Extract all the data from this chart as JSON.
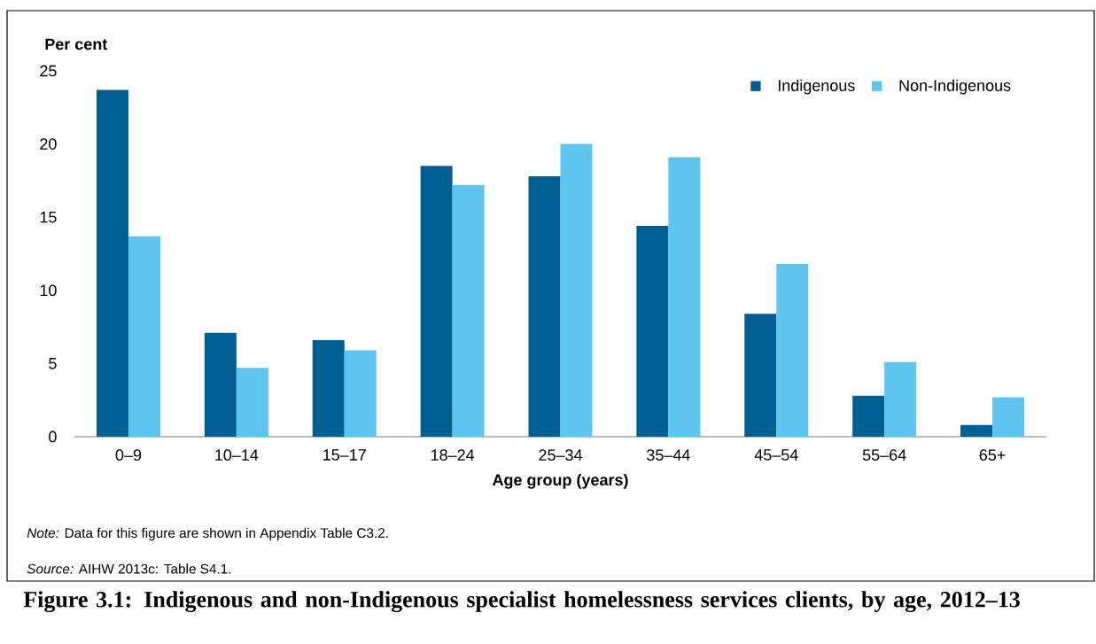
{
  "chart_data": {
    "type": "bar",
    "title": "Figure 3.1: Indigenous and non-Indigenous specialist homelessness services clients, by age, 2012–13",
    "xlabel": "Age group (years)",
    "ylabel": "Per cent",
    "categories": [
      "0–9",
      "10–14",
      "15–17",
      "18–24",
      "25–34",
      "35–44",
      "45–54",
      "55–64",
      "65+"
    ],
    "series": [
      {
        "name": "Indigenous",
        "color": "#005e93",
        "values": [
          23.7,
          7.1,
          6.6,
          18.5,
          17.8,
          14.4,
          8.4,
          2.8,
          0.8
        ]
      },
      {
        "name": "Non-Indigenous",
        "color": "#5ec5f0",
        "values": [
          13.7,
          4.7,
          5.9,
          17.2,
          20.0,
          19.1,
          11.8,
          5.1,
          2.7
        ]
      }
    ],
    "ylim": [
      0,
      25
    ],
    "yticks": [
      0,
      5,
      10,
      15,
      20,
      25
    ],
    "legend": "top right",
    "annotations": [
      "*Note:* Data for this figure are shown in Appendix Table C3.2.",
      "*Source:* AIHW 2013c: Table S4.1."
    ]
  }
}
